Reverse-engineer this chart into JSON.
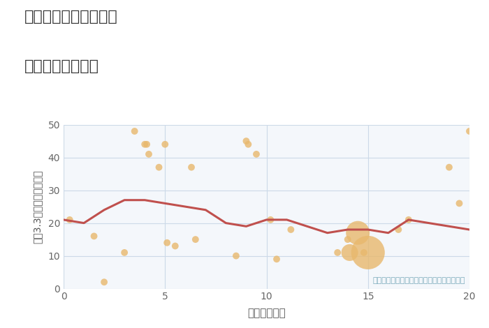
{
  "title_line1": "千葉県成田市水の上の",
  "title_line2": "駅距離別土地価格",
  "xlabel": "駅距離（分）",
  "ylabel": "平（3.3㎡）単価（万円）",
  "annotation": "円の大きさは、取引のあった物件面積を示す",
  "xlim": [
    0,
    20
  ],
  "ylim": [
    0,
    50
  ],
  "xticks": [
    0,
    5,
    10,
    15,
    20
  ],
  "yticks": [
    0,
    10,
    20,
    30,
    40,
    50
  ],
  "scatter_x": [
    0.3,
    1.5,
    2.0,
    3.0,
    3.5,
    4.0,
    4.1,
    4.2,
    4.7,
    5.0,
    5.1,
    5.5,
    6.3,
    6.5,
    8.5,
    9.0,
    9.1,
    9.5,
    10.2,
    10.5,
    11.2,
    13.5,
    14.0,
    14.1,
    14.5,
    14.8,
    15.0,
    16.5,
    17.0,
    19.0,
    19.5,
    20.0
  ],
  "scatter_y": [
    21,
    16,
    2,
    11,
    48,
    44,
    44,
    41,
    37,
    44,
    14,
    13,
    37,
    15,
    10,
    45,
    44,
    41,
    21,
    9,
    18,
    11,
    15,
    11,
    17,
    11,
    11,
    18,
    21,
    37,
    26,
    48
  ],
  "scatter_s": [
    50,
    50,
    50,
    50,
    50,
    50,
    50,
    50,
    50,
    50,
    50,
    50,
    50,
    50,
    50,
    50,
    50,
    50,
    50,
    50,
    50,
    50,
    50,
    300,
    600,
    50,
    1200,
    50,
    50,
    50,
    50,
    50
  ],
  "scatter_color": "#e8b86d",
  "scatter_alpha": 0.8,
  "line_x": [
    0,
    1,
    2,
    3,
    4,
    5,
    6,
    7,
    8,
    9,
    10,
    11,
    12,
    13,
    14,
    15,
    16,
    17,
    18,
    19,
    20
  ],
  "line_y": [
    21,
    20,
    24,
    27,
    27,
    26,
    25,
    24,
    20,
    19,
    21,
    21,
    19,
    17,
    18,
    18,
    17,
    21,
    20,
    19,
    18
  ],
  "line_color": "#c0504d",
  "line_width": 2.2,
  "bg_color": "#ffffff",
  "plot_bg_color": "#f4f7fb",
  "grid_color": "#ccd9e8",
  "title_color": "#333333",
  "axis_label_color": "#555555",
  "tick_color": "#666666",
  "annotation_color": "#7aaabb",
  "title_fontsize": 16,
  "axis_fontsize": 11,
  "tick_fontsize": 10,
  "annotation_fontsize": 8
}
